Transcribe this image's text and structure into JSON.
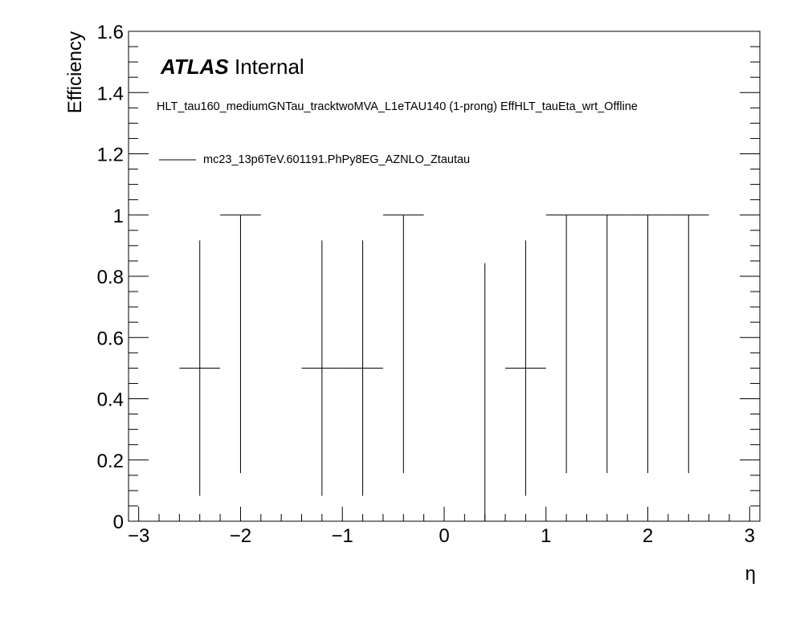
{
  "chart_data": {
    "type": "scatter",
    "style": "error-bars",
    "xlabel": "η",
    "ylabel": "Efficiency",
    "xlim": [
      -3.1,
      3.1
    ],
    "ylim": [
      0,
      1.6
    ],
    "x_ticks": [
      -3,
      -2,
      -1,
      0,
      1,
      2,
      3
    ],
    "x_tick_labels": [
      "−3",
      "−2",
      "−1",
      "0",
      "1",
      "2",
      "3"
    ],
    "y_ticks": [
      0,
      0.2,
      0.4,
      0.6,
      0.8,
      1,
      1.2,
      1.4,
      1.6
    ],
    "y_tick_labels": [
      "0",
      "0.2",
      "0.4",
      "0.6",
      "0.8",
      "1",
      "1.2",
      "1.4",
      "1.6"
    ],
    "experiment_label": "ATLAS",
    "experiment_status": "Internal",
    "annotation": "HLT_tau160_mediumGNTau_tracktwoMVA_L1eTAU140 (1-prong) EffHLT_tauEta_wrt_Offline",
    "series": [
      {
        "name": "mc23_13p6TeV.601191.PhPy8EG_AZNLO_Ztautau",
        "color": "#000000",
        "points": [
          {
            "x": -2.4,
            "xlow": -2.6,
            "xhigh": -2.2,
            "y": 0.5,
            "ylow": 0.083,
            "yhigh": 0.917
          },
          {
            "x": -2.0,
            "xlow": -2.2,
            "xhigh": -1.8,
            "y": 1.0,
            "ylow": 0.157,
            "yhigh": 1.0
          },
          {
            "x": -1.2,
            "xlow": -1.4,
            "xhigh": -1.0,
            "y": 0.5,
            "ylow": 0.083,
            "yhigh": 0.917
          },
          {
            "x": -0.8,
            "xlow": -1.0,
            "xhigh": -0.6,
            "y": 0.5,
            "ylow": 0.083,
            "yhigh": 0.917
          },
          {
            "x": -0.4,
            "xlow": -0.6,
            "xhigh": -0.2,
            "y": 1.0,
            "ylow": 0.157,
            "yhigh": 1.0
          },
          {
            "x": 0.4,
            "xlow": 0.4,
            "xhigh": 0.4,
            "y": 0.0,
            "ylow": 0.0,
            "yhigh": 0.843
          },
          {
            "x": 0.8,
            "xlow": 0.6,
            "xhigh": 1.0,
            "y": 0.5,
            "ylow": 0.083,
            "yhigh": 0.917
          },
          {
            "x": 1.2,
            "xlow": 1.0,
            "xhigh": 1.4,
            "y": 1.0,
            "ylow": 0.157,
            "yhigh": 1.0
          },
          {
            "x": 1.6,
            "xlow": 1.4,
            "xhigh": 1.8,
            "y": 1.0,
            "ylow": 0.157,
            "yhigh": 1.0
          },
          {
            "x": 2.0,
            "xlow": 1.8,
            "xhigh": 2.2,
            "y": 1.0,
            "ylow": 0.157,
            "yhigh": 1.0
          },
          {
            "x": 2.4,
            "xlow": 2.2,
            "xhigh": 2.6,
            "y": 1.0,
            "ylow": 0.157,
            "yhigh": 1.0
          }
        ]
      }
    ],
    "grid": false,
    "legend_position": "top-left"
  }
}
